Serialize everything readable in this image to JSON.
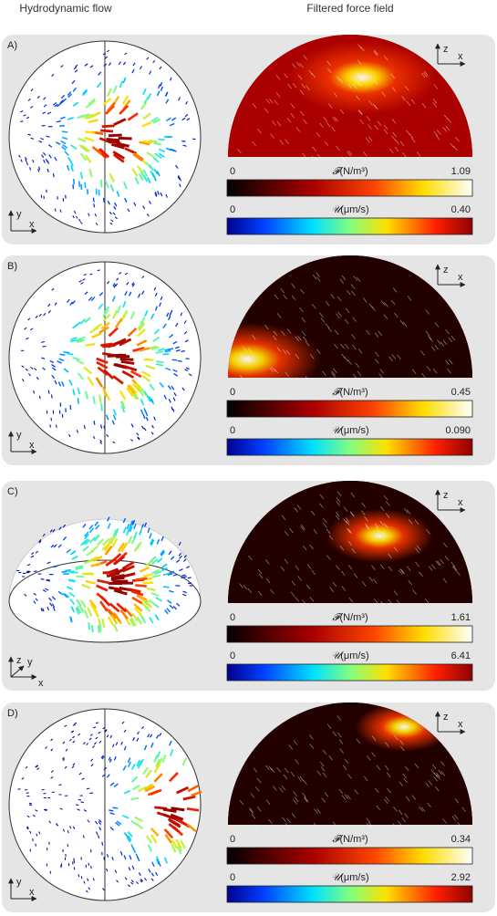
{
  "header": {
    "left": "Hydrodynamic flow",
    "right": "Filtered force field"
  },
  "panels": [
    {
      "label": "A)",
      "left_axes": [
        "y",
        "x"
      ],
      "right_axes": [
        "z",
        "x"
      ],
      "force": {
        "name": "𝓕",
        "unit": "(N/m³)",
        "min": "0",
        "max": "1.09"
      },
      "velocity": {
        "name": "𝒰",
        "unit": "(μm/s)",
        "min": "0",
        "max": "0.40"
      }
    },
    {
      "label": "B)",
      "left_axes": [
        "y",
        "x"
      ],
      "right_axes": [
        "z",
        "x"
      ],
      "force": {
        "name": "𝓕",
        "unit": "(N/m³)",
        "min": "0",
        "max": "0.45"
      },
      "velocity": {
        "name": "𝒰",
        "unit": "(μm/s)",
        "min": "0",
        "max": "0.090"
      }
    },
    {
      "label": "C)",
      "left_axes": [
        "z",
        "y",
        "x"
      ],
      "right_axes": [
        "z",
        "x"
      ],
      "force": {
        "name": "𝓕",
        "unit": "(N/m³)",
        "min": "0",
        "max": "1.61"
      },
      "velocity": {
        "name": "𝒰",
        "unit": "(μm/s)",
        "min": "0",
        "max": "6.41"
      }
    },
    {
      "label": "D)",
      "left_axes": [
        "y",
        "x"
      ],
      "right_axes": [
        "z",
        "x"
      ],
      "force": {
        "name": "𝓕",
        "unit": "(N/m³)",
        "min": "0",
        "max": "0.34"
      },
      "velocity": {
        "name": "𝒰",
        "unit": "(μm/s)",
        "min": "0",
        "max": "2.92"
      }
    }
  ]
}
